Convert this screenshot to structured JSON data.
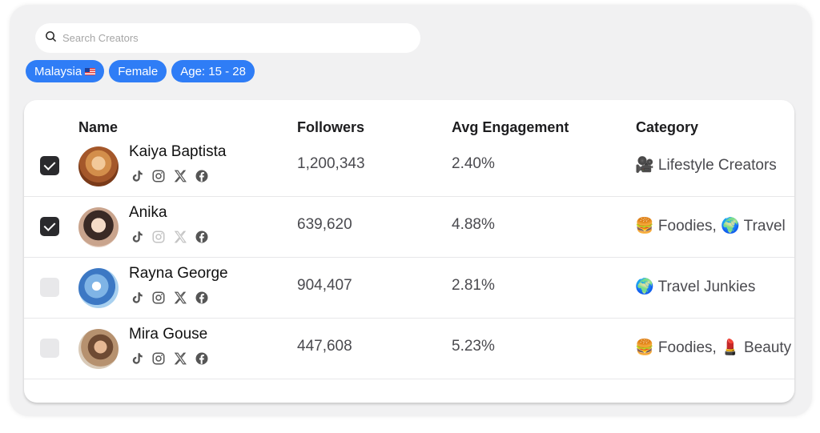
{
  "search": {
    "placeholder": "Search Creators"
  },
  "filters": [
    {
      "label": "Malaysia",
      "flag": "malaysia-flag"
    },
    {
      "label": "Female"
    },
    {
      "label": "Age: 15 - 28"
    }
  ],
  "colors": {
    "chip": "#2f7df6",
    "checkbox_checked": "#2a2a2d",
    "checkbox_unchecked": "#e8e8ea"
  },
  "table": {
    "headers": {
      "name": "Name",
      "followers": "Followers",
      "engagement": "Avg Engagement",
      "category": "Category"
    },
    "rows": [
      {
        "selected": true,
        "name": "Kaiya Baptista",
        "followers": "1,200,343",
        "engagement": "2.40%",
        "category": "🎥 Lifestyle Creators",
        "instagram_active": true,
        "x_active": true
      },
      {
        "selected": true,
        "name": "Anika",
        "followers": "639,620",
        "engagement": "4.88%",
        "category": "🍔 Foodies, 🌍 Travel",
        "instagram_active": false,
        "x_active": false
      },
      {
        "selected": false,
        "name": "Rayna George",
        "followers": "904,407",
        "engagement": "2.81%",
        "category": "🌍 Travel Junkies",
        "instagram_active": true,
        "x_active": true
      },
      {
        "selected": false,
        "name": "Mira Gouse",
        "followers": "447,608",
        "engagement": "5.23%",
        "category": "🍔 Foodies, 💄 Beauty",
        "instagram_active": true,
        "x_active": true
      }
    ]
  }
}
